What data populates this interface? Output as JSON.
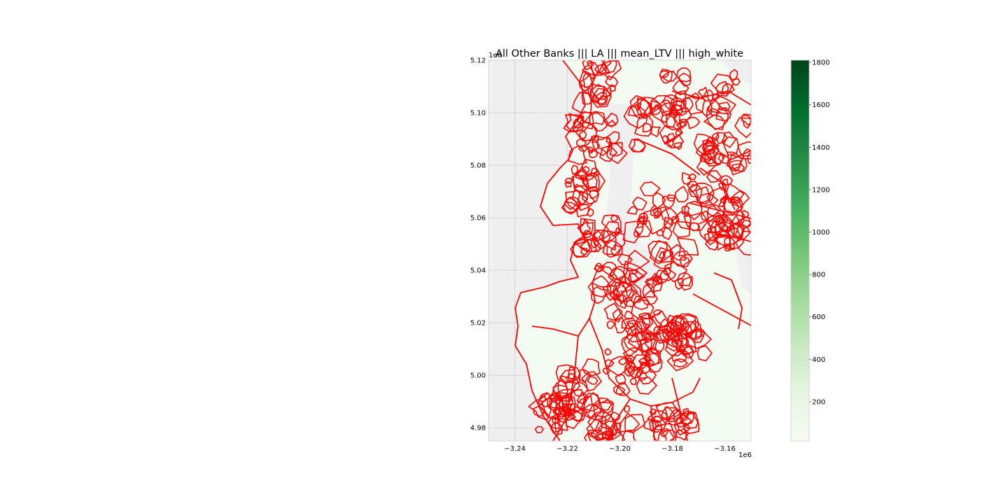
{
  "title": "All Other Banks ||| LA ||| mean_LTV ||| high_white",
  "map": {
    "x_ticks": [
      "−3.24",
      "−3.22",
      "−3.20",
      "−3.18",
      "−3.16"
    ],
    "y_ticks": [
      "5.12",
      "5.10",
      "5.08",
      "5.06",
      "5.04",
      "5.02",
      "5.00",
      "4.98"
    ],
    "x_ticks_values": [
      -3.24,
      -3.22,
      -3.2,
      -3.18,
      -3.16
    ],
    "y_ticks_values": [
      5.12,
      5.1,
      5.08,
      5.06,
      5.04,
      5.02,
      5.0,
      4.98
    ],
    "x_range": [
      -3.25,
      -3.15
    ],
    "y_range": [
      4.975,
      5.12
    ],
    "x_offset_label": "1e6",
    "y_offset_label": "1e6",
    "background_color": "#efefef",
    "fill_color": "#f4fbf2",
    "boundary_color": "#ff0000",
    "grid": true
  },
  "colorbar": {
    "colormap": "Greens",
    "ticks": [
      "1800",
      "1600",
      "1400",
      "1200",
      "1000",
      "800",
      "600",
      "400",
      "200"
    ],
    "tick_values": [
      1800,
      1600,
      1400,
      1200,
      1000,
      800,
      600,
      400,
      200
    ],
    "range": [
      15,
      1810
    ],
    "colors": [
      "#f7fcf5",
      "#e5f5e0",
      "#c7e9c0",
      "#a1d99b",
      "#74c476",
      "#41ab5d",
      "#238b45",
      "#006d2c",
      "#00441b"
    ]
  }
}
